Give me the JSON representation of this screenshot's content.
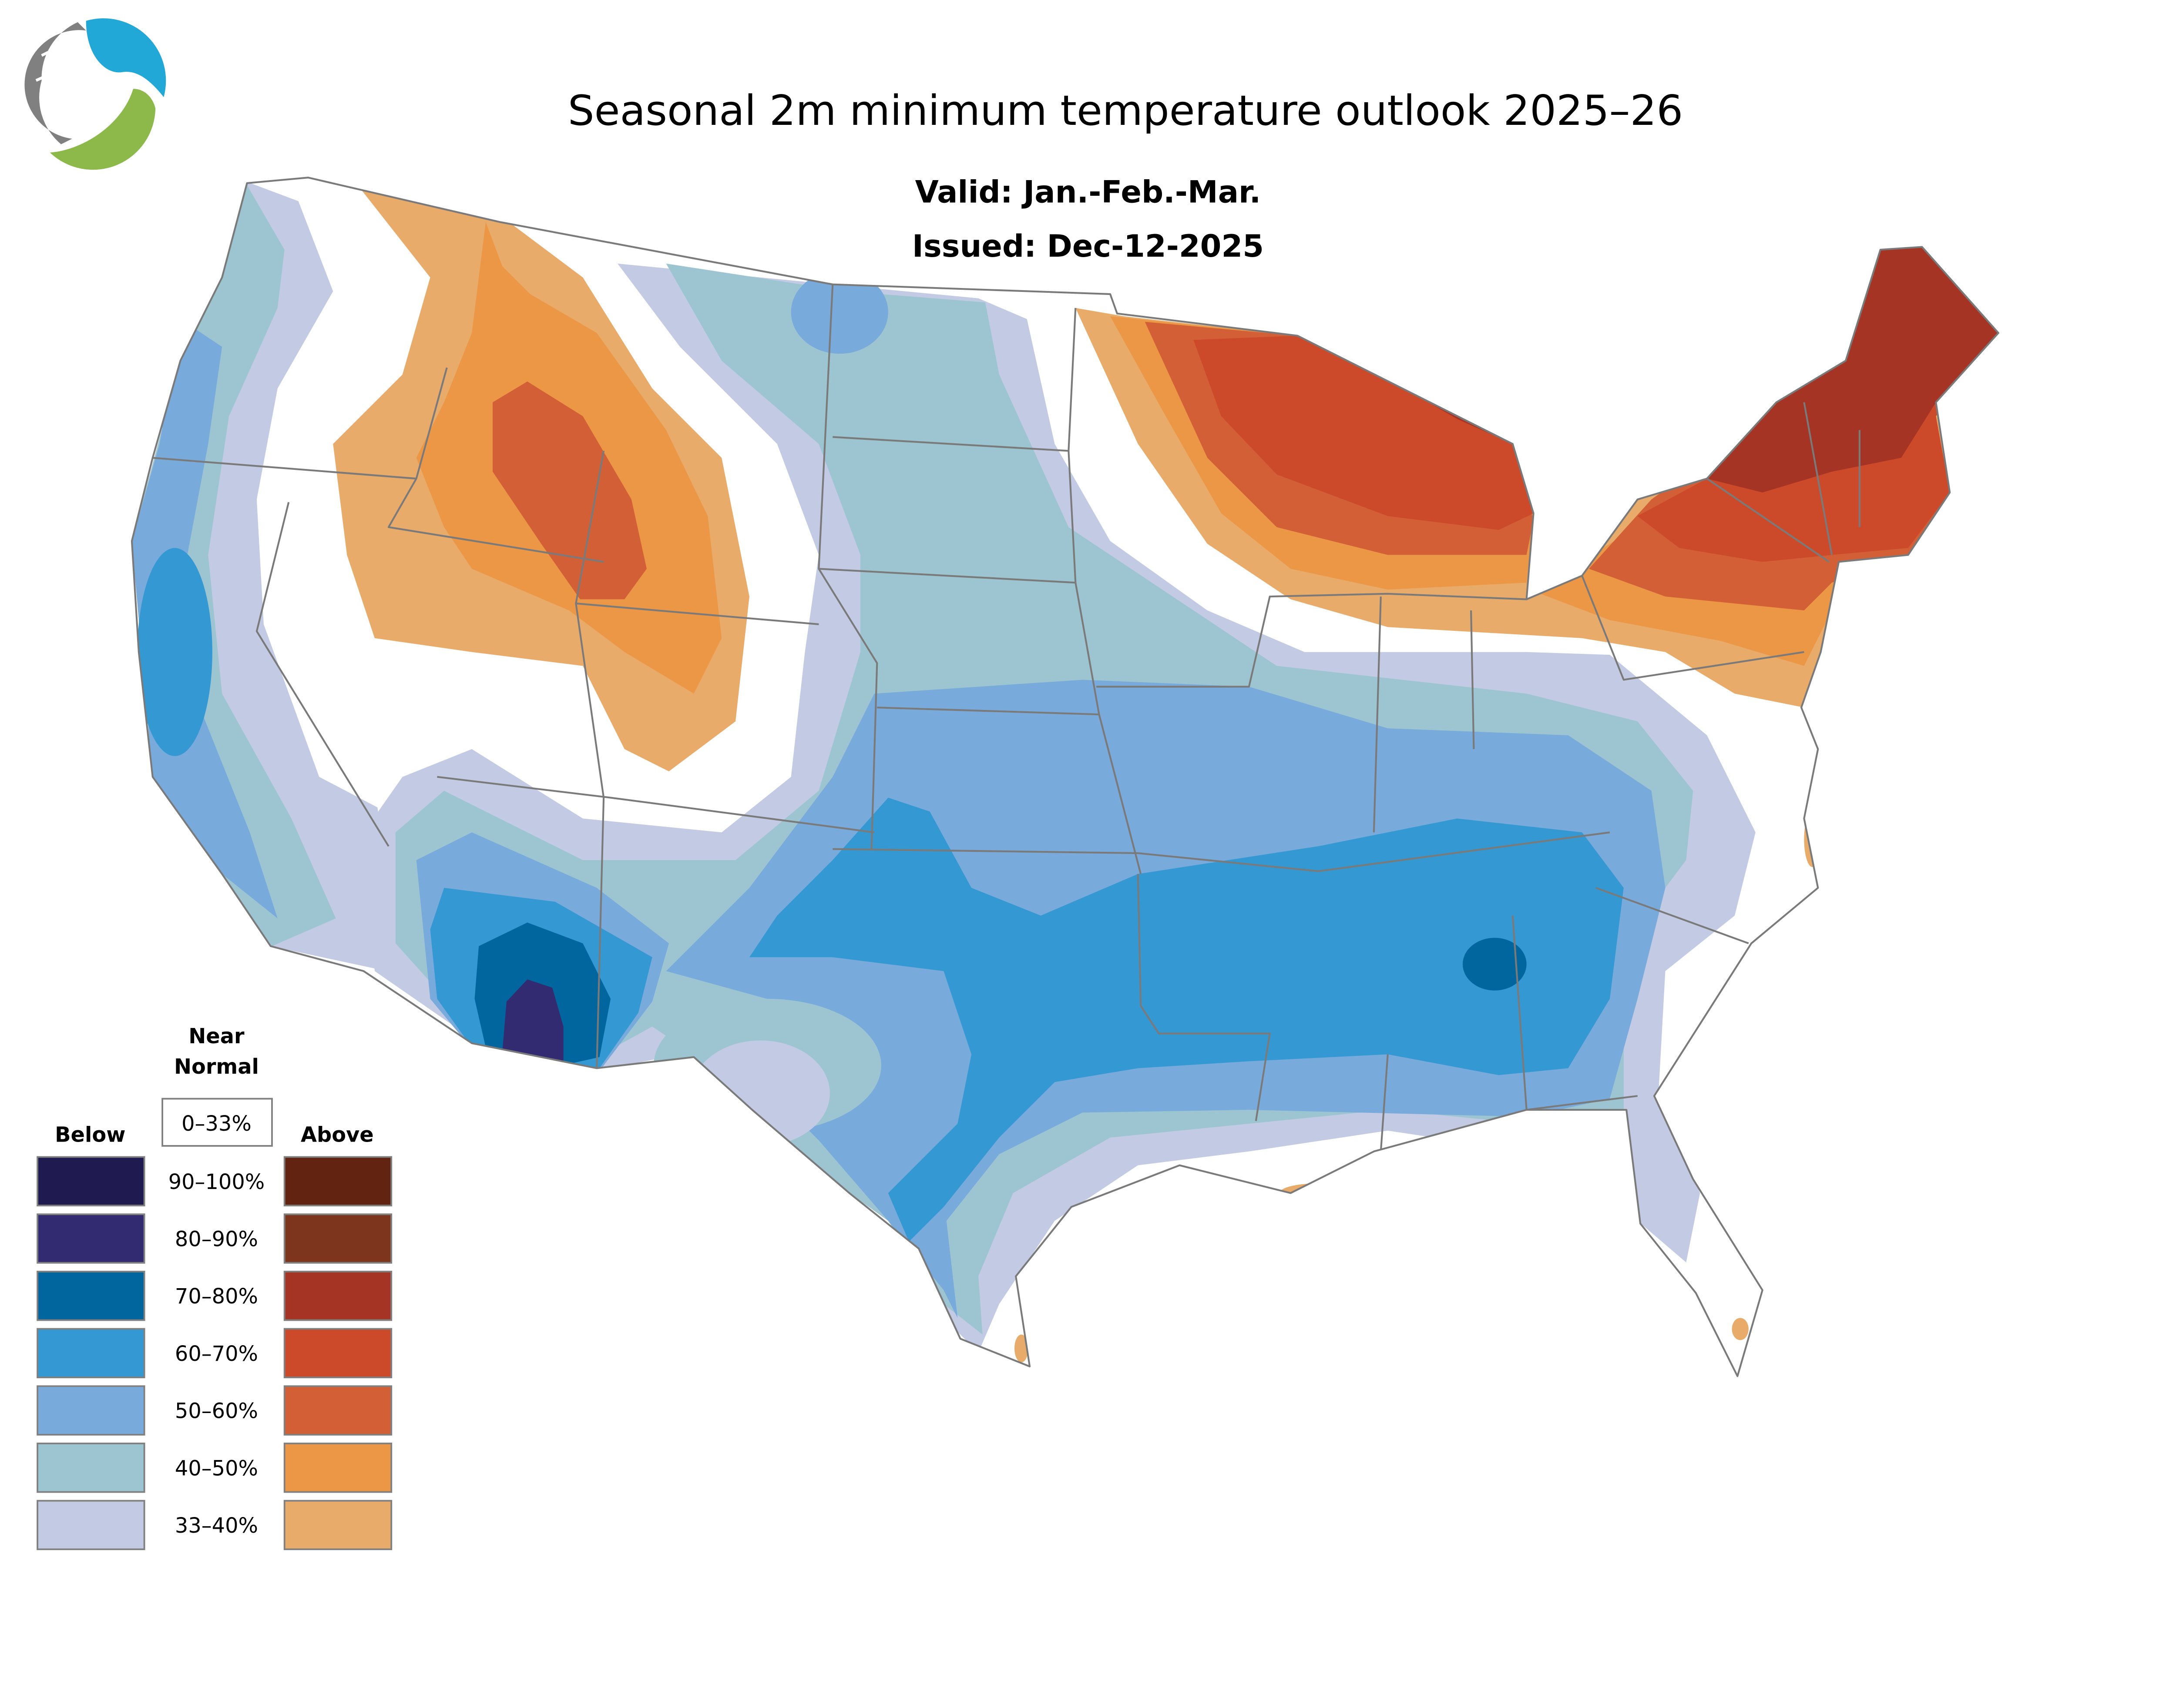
{
  "title": "Seasonal 2m minimum temperature outlook 2025–26",
  "valid": "Valid: Jan.-Feb.-Mar.",
  "issued": "Issued: Dec-12-2025",
  "legend": {
    "near_normal_line1": "Near",
    "near_normal_line2": "Normal",
    "near_normal_range": "0–33%",
    "below_label": "Below",
    "above_label": "Above",
    "rows": [
      {
        "range": "90–100%",
        "below_color": "#1f1a4f",
        "above_color": "#622311"
      },
      {
        "range": "80–90%",
        "below_color": "#332b72",
        "above_color": "#7e351e"
      },
      {
        "range": "70–80%",
        "below_color": "#02669e",
        "above_color": "#a53424"
      },
      {
        "range": "60–70%",
        "below_color": "#3498d3",
        "above_color": "#cc4a29"
      },
      {
        "range": "50–60%",
        "below_color": "#78aadb",
        "above_color": "#d35f36"
      },
      {
        "range": "40–50%",
        "below_color": "#9dc5d1",
        "above_color": "#eb9746"
      },
      {
        "range": "33–40%",
        "below_color": "#c3cae4",
        "above_color": "#e8ab6a"
      }
    ]
  },
  "logo": {
    "colors": {
      "blue": "#21a8d6",
      "green": "#8db84a",
      "grey": "#808080"
    }
  }
}
